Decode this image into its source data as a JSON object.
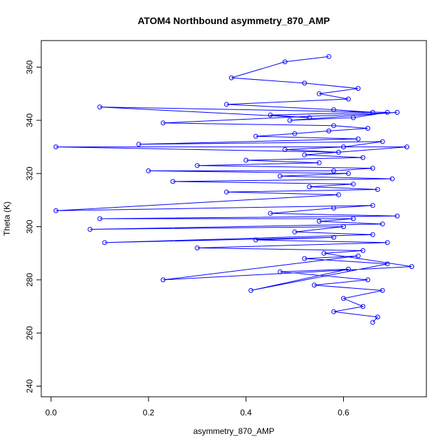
{
  "chart_data": {
    "type": "line",
    "title": "ATOM4 Northbound asymmetry_870_AMP",
    "xlabel": "asymmetry_870_AMP",
    "ylabel": "Theta (K)",
    "xlim": [
      -0.02,
      0.77
    ],
    "ylim": [
      236,
      370
    ],
    "xticks": [
      0.0,
      0.2,
      0.4,
      0.6
    ],
    "xtick_labels": [
      "0.0",
      "0.2",
      "0.4",
      "0.6"
    ],
    "yticks": [
      240,
      260,
      280,
      300,
      320,
      340,
      360
    ],
    "ytick_labels": [
      "240",
      "260",
      "280",
      "300",
      "320",
      "340",
      "360"
    ],
    "grid": false,
    "marker": "open-circle",
    "series": [
      {
        "color": "#0000ff",
        "x": [
          0.57,
          0.48,
          0.37,
          0.52,
          0.63,
          0.55,
          0.61,
          0.36,
          0.58,
          0.66,
          0.45,
          0.53,
          0.1,
          0.69,
          0.62,
          0.49,
          0.71,
          0.23,
          0.58,
          0.65,
          0.57,
          0.5,
          0.42,
          0.63,
          0.18,
          0.68,
          0.6,
          0.48,
          0.59,
          0.01,
          0.73,
          0.52,
          0.64,
          0.4,
          0.55,
          0.3,
          0.66,
          0.58,
          0.2,
          0.61,
          0.47,
          0.7,
          0.25,
          0.62,
          0.53,
          0.67,
          0.36,
          0.59,
          0.01,
          0.66,
          0.58,
          0.45,
          0.71,
          0.1,
          0.62,
          0.55,
          0.68,
          0.08,
          0.6,
          0.5,
          0.66,
          0.11,
          0.58,
          0.42,
          0.69,
          0.3,
          0.64,
          0.56,
          0.74,
          0.23,
          0.63,
          0.52,
          0.69,
          0.41,
          0.61,
          0.47,
          0.65,
          0.54,
          0.68,
          0.6,
          0.64,
          0.58,
          0.67,
          0.66
        ],
        "y": [
          364,
          362,
          356,
          354,
          352,
          350,
          348,
          346,
          344,
          343,
          342,
          341,
          345,
          343,
          341,
          340,
          343,
          339,
          338,
          337,
          336,
          335,
          334,
          333,
          331,
          332,
          330,
          329,
          328,
          330,
          330,
          327,
          326,
          325,
          324,
          323,
          322,
          321,
          321,
          320,
          319,
          318,
          317,
          316,
          315,
          314,
          313,
          312,
          306,
          308,
          307,
          305,
          304,
          303,
          303,
          302,
          301,
          299,
          300,
          298,
          297,
          294,
          296,
          295,
          294,
          292,
          291,
          290,
          285,
          280,
          289,
          288,
          286,
          276,
          284,
          283,
          280,
          278,
          276,
          273,
          270,
          268,
          266,
          264
        ]
      }
    ]
  }
}
